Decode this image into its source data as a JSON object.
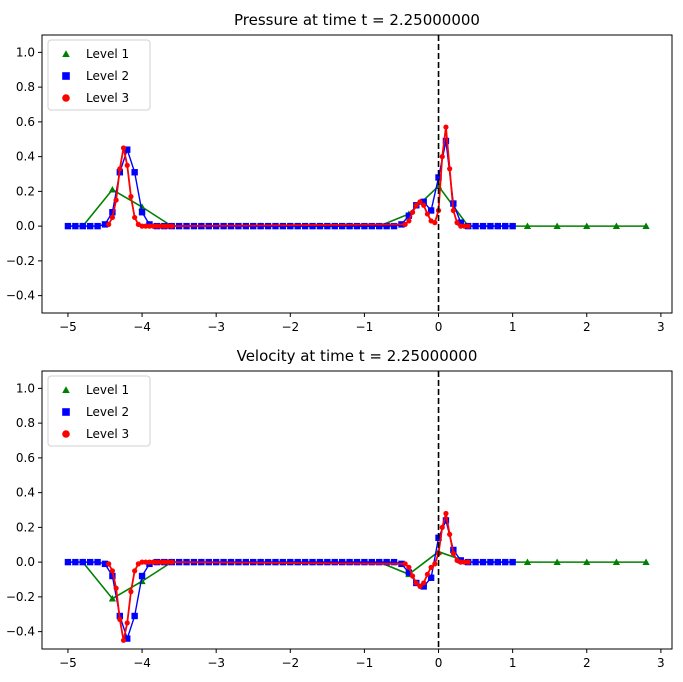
{
  "chart_data": [
    {
      "type": "line",
      "title": "Pressure at time t =      2.25000000",
      "xlabel": "",
      "ylabel": "",
      "xlim": [
        -5.35,
        3.15
      ],
      "ylim": [
        -0.5,
        1.1
      ],
      "xticks": [
        -5,
        -4,
        -3,
        -2,
        -1,
        0,
        1,
        2,
        3
      ],
      "xtick_labels": [
        "−5",
        "−4",
        "−3",
        "−2",
        "−1",
        "0",
        "1",
        "2",
        "3"
      ],
      "yticks": [
        -0.4,
        -0.2,
        0.0,
        0.2,
        0.4,
        0.6,
        0.8,
        1.0
      ],
      "ytick_labels": [
        "−0.4",
        "−0.2",
        "0.0",
        "0.2",
        "0.4",
        "0.6",
        "0.8",
        "1.0"
      ],
      "grid": false,
      "legend_position": "top-left",
      "vline": {
        "x": 0,
        "style": "dashed",
        "color": "#000000"
      },
      "series": [
        {
          "name": "Level 1",
          "color": "#008000",
          "marker": "triangle",
          "x": [
            -4.8,
            -4.4,
            -4.0,
            -3.6,
            -3.2,
            -2.8,
            -2.4,
            -2.0,
            -1.6,
            -1.2,
            -0.8,
            -0.4,
            0.0,
            0.4,
            0.8,
            1.2,
            1.6,
            2.0,
            2.4,
            2.8
          ],
          "y": [
            0.0,
            0.21,
            0.11,
            0.0,
            0.0,
            0.0,
            0.0,
            0.0,
            0.0,
            0.0,
            0.0,
            0.07,
            0.23,
            0.0,
            0.0,
            0.0,
            0.0,
            0.0,
            0.0,
            0.0
          ]
        },
        {
          "name": "Level 2",
          "color": "#0000ff",
          "marker": "square",
          "x": [
            -5.0,
            -4.9,
            -4.8,
            -4.7,
            -4.6,
            -4.5,
            -4.4,
            -4.3,
            -4.2,
            -4.1,
            -4.0,
            -3.9,
            -3.8,
            -3.7,
            -3.6,
            -3.5,
            -3.4,
            -3.3,
            -3.2,
            -3.1,
            -3.0,
            -2.9,
            -2.8,
            -2.7,
            -2.6,
            -2.5,
            -2.4,
            -2.3,
            -2.2,
            -2.1,
            -2.0,
            -1.9,
            -1.8,
            -1.7,
            -1.6,
            -1.5,
            -1.4,
            -1.3,
            -1.2,
            -1.1,
            -1.0,
            -0.9,
            -0.8,
            -0.7,
            -0.6,
            -0.5,
            -0.4,
            -0.3,
            -0.2,
            -0.1,
            0.0,
            0.1,
            0.2,
            0.3,
            0.4,
            0.5,
            0.6,
            0.7,
            0.8,
            0.9,
            1.0
          ],
          "y": [
            0.0,
            0.0,
            0.0,
            0.0,
            0.0,
            0.01,
            0.08,
            0.31,
            0.44,
            0.31,
            0.08,
            0.01,
            0.0,
            0.0,
            0.0,
            0.0,
            0.0,
            0.0,
            0.0,
            0.0,
            0.0,
            0.0,
            0.0,
            0.0,
            0.0,
            0.0,
            0.0,
            0.0,
            0.0,
            0.0,
            0.0,
            0.0,
            0.0,
            0.0,
            0.0,
            0.0,
            0.0,
            0.0,
            0.0,
            0.0,
            0.0,
            0.0,
            0.0,
            0.0,
            0.0,
            0.01,
            0.06,
            0.12,
            0.14,
            0.09,
            0.28,
            0.49,
            0.13,
            0.02,
            0.0,
            0.0,
            0.0,
            0.0,
            0.0,
            0.0,
            0.0
          ]
        },
        {
          "name": "Level 3",
          "color": "#ff0000",
          "marker": "circle",
          "x": [
            -4.45,
            -4.4,
            -4.35,
            -4.3,
            -4.25,
            -4.2,
            -4.15,
            -4.1,
            -4.05,
            -4.0,
            -3.95,
            -3.9,
            -3.85,
            -3.8,
            -3.75,
            -3.7,
            -3.65,
            -3.6,
            -0.45,
            -0.4,
            -0.35,
            -0.3,
            -0.25,
            -0.2,
            -0.15,
            -0.1,
            -0.05,
            0.0,
            0.05,
            0.1,
            0.15,
            0.2,
            0.25,
            0.3,
            0.35,
            0.4
          ],
          "y": [
            0.01,
            0.05,
            0.15,
            0.33,
            0.45,
            0.35,
            0.17,
            0.05,
            0.01,
            0.0,
            0.0,
            0.0,
            0.0,
            0.0,
            0.0,
            0.0,
            0.0,
            0.0,
            0.01,
            0.03,
            0.08,
            0.12,
            0.14,
            0.12,
            0.07,
            0.03,
            0.02,
            0.09,
            0.4,
            0.57,
            0.33,
            0.09,
            0.02,
            0.0,
            0.0,
            0.0
          ]
        }
      ]
    },
    {
      "type": "line",
      "title": "Velocity at time t =      2.25000000",
      "xlabel": "",
      "ylabel": "",
      "xlim": [
        -5.35,
        3.15
      ],
      "ylim": [
        -0.5,
        1.1
      ],
      "xticks": [
        -5,
        -4,
        -3,
        -2,
        -1,
        0,
        1,
        2,
        3
      ],
      "xtick_labels": [
        "−5",
        "−4",
        "−3",
        "−2",
        "−1",
        "0",
        "1",
        "2",
        "3"
      ],
      "yticks": [
        -0.4,
        -0.2,
        0.0,
        0.2,
        0.4,
        0.6,
        0.8,
        1.0
      ],
      "ytick_labels": [
        "−0.4",
        "−0.2",
        "0.0",
        "0.2",
        "0.4",
        "0.6",
        "0.8",
        "1.0"
      ],
      "grid": false,
      "legend_position": "top-left",
      "vline": {
        "x": 0,
        "style": "dashed",
        "color": "#000000"
      },
      "series": [
        {
          "name": "Level 1",
          "color": "#008000",
          "marker": "triangle",
          "x": [
            -4.8,
            -4.4,
            -4.0,
            -3.6,
            -3.2,
            -2.8,
            -2.4,
            -2.0,
            -1.6,
            -1.2,
            -0.8,
            -0.4,
            0.0,
            0.4,
            0.8,
            1.2,
            1.6,
            2.0,
            2.4,
            2.8
          ],
          "y": [
            0.0,
            -0.21,
            -0.11,
            0.0,
            0.0,
            0.0,
            0.0,
            0.0,
            0.0,
            0.0,
            0.0,
            -0.07,
            0.06,
            0.0,
            0.0,
            0.0,
            0.0,
            0.0,
            0.0,
            0.0
          ]
        },
        {
          "name": "Level 2",
          "color": "#0000ff",
          "marker": "square",
          "x": [
            -5.0,
            -4.9,
            -4.8,
            -4.7,
            -4.6,
            -4.5,
            -4.4,
            -4.3,
            -4.2,
            -4.1,
            -4.0,
            -3.9,
            -3.8,
            -3.7,
            -3.6,
            -3.5,
            -3.4,
            -3.3,
            -3.2,
            -3.1,
            -3.0,
            -2.9,
            -2.8,
            -2.7,
            -2.6,
            -2.5,
            -2.4,
            -2.3,
            -2.2,
            -2.1,
            -2.0,
            -1.9,
            -1.8,
            -1.7,
            -1.6,
            -1.5,
            -1.4,
            -1.3,
            -1.2,
            -1.1,
            -1.0,
            -0.9,
            -0.8,
            -0.7,
            -0.6,
            -0.5,
            -0.4,
            -0.3,
            -0.2,
            -0.1,
            0.0,
            0.1,
            0.2,
            0.3,
            0.4,
            0.5,
            0.6,
            0.7,
            0.8,
            0.9,
            1.0
          ],
          "y": [
            0.0,
            0.0,
            0.0,
            0.0,
            0.0,
            -0.01,
            -0.08,
            -0.31,
            -0.44,
            -0.31,
            -0.08,
            -0.01,
            0.0,
            0.0,
            0.0,
            0.0,
            0.0,
            0.0,
            0.0,
            0.0,
            0.0,
            0.0,
            0.0,
            0.0,
            0.0,
            0.0,
            0.0,
            0.0,
            0.0,
            0.0,
            0.0,
            0.0,
            0.0,
            0.0,
            0.0,
            0.0,
            0.0,
            0.0,
            0.0,
            0.0,
            0.0,
            0.0,
            0.0,
            0.0,
            0.0,
            -0.01,
            -0.06,
            -0.12,
            -0.14,
            -0.09,
            0.14,
            0.24,
            0.07,
            0.01,
            0.0,
            0.0,
            0.0,
            0.0,
            0.0,
            0.0,
            0.0
          ]
        },
        {
          "name": "Level 3",
          "color": "#ff0000",
          "marker": "circle",
          "x": [
            -4.45,
            -4.4,
            -4.35,
            -4.3,
            -4.25,
            -4.2,
            -4.15,
            -4.1,
            -4.05,
            -4.0,
            -3.95,
            -3.9,
            -3.85,
            -3.8,
            -3.75,
            -3.7,
            -3.65,
            -3.6,
            -0.45,
            -0.4,
            -0.35,
            -0.3,
            -0.25,
            -0.2,
            -0.15,
            -0.1,
            -0.05,
            0.0,
            0.05,
            0.1,
            0.15,
            0.2,
            0.25,
            0.3,
            0.35,
            0.4
          ],
          "y": [
            -0.01,
            -0.05,
            -0.15,
            -0.33,
            -0.45,
            -0.35,
            -0.17,
            -0.05,
            -0.01,
            0.0,
            0.0,
            0.0,
            0.0,
            0.0,
            0.0,
            0.0,
            0.0,
            0.0,
            -0.01,
            -0.03,
            -0.08,
            -0.12,
            -0.14,
            -0.12,
            -0.07,
            -0.03,
            -0.01,
            0.05,
            0.2,
            0.28,
            0.16,
            0.05,
            0.01,
            0.0,
            0.0,
            0.0
          ]
        }
      ]
    }
  ]
}
